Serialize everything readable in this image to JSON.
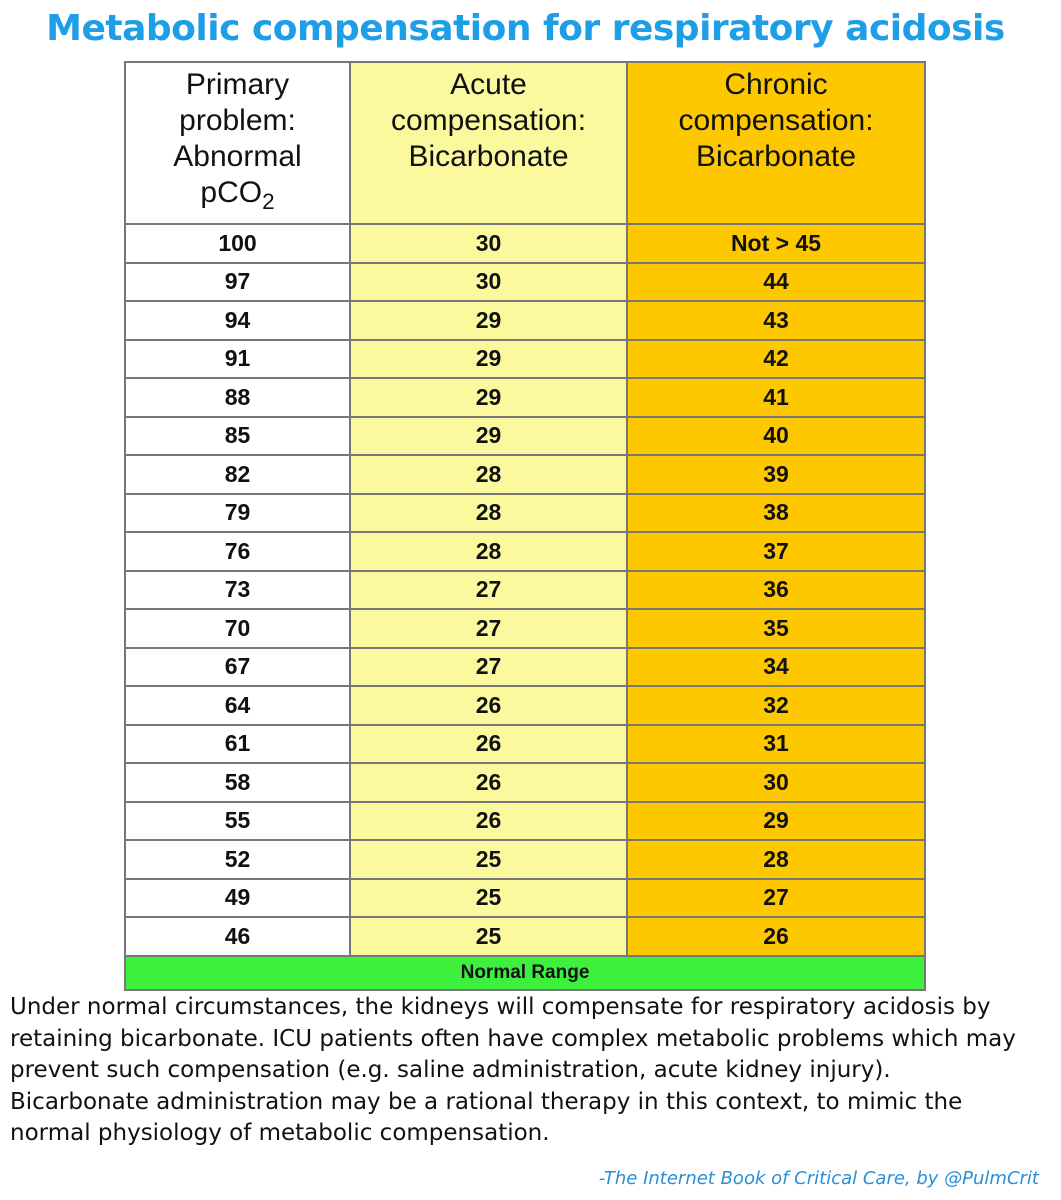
{
  "header": {
    "title": "Metabolic compensation for respiratory acidosis"
  },
  "table": {
    "columns": [
      {
        "lines": [
          "Primary",
          "problem:",
          "Abnormal",
          "pCO"
        ],
        "subscript": "2"
      },
      {
        "lines": [
          "Acute",
          "compensation:",
          "Bicarbonate"
        ]
      },
      {
        "lines": [
          "Chronic",
          "compensation:",
          "Bicarbonate"
        ]
      }
    ],
    "rows": [
      [
        100,
        30,
        "Not > 45"
      ],
      [
        97,
        30,
        44
      ],
      [
        94,
        29,
        43
      ],
      [
        91,
        29,
        42
      ],
      [
        88,
        29,
        41
      ],
      [
        85,
        29,
        40
      ],
      [
        82,
        28,
        39
      ],
      [
        79,
        28,
        38
      ],
      [
        76,
        28,
        37
      ],
      [
        73,
        27,
        36
      ],
      [
        70,
        27,
        35
      ],
      [
        67,
        27,
        34
      ],
      [
        64,
        26,
        32
      ],
      [
        61,
        26,
        31
      ],
      [
        58,
        26,
        30
      ],
      [
        55,
        26,
        29
      ],
      [
        52,
        25,
        28
      ],
      [
        49,
        25,
        27
      ],
      [
        46,
        25,
        26
      ]
    ],
    "footer": "Normal Range"
  },
  "paragraph": {
    "lines": [
      "Under normal circumstances, the kidneys will compensate for respiratory acidosis by",
      "retaining bicarbonate.  ICU patients often have complex metabolic problems which may",
      "prevent such compensation (e.g. saline administration, acute kidney injury).",
      "Bicarbonate administration may be a rational therapy in this context, to mimic the",
      "normal physiology of metabolic compensation."
    ]
  },
  "credit": "-The Internet Book of Critical Care, by @PulmCrit"
}
